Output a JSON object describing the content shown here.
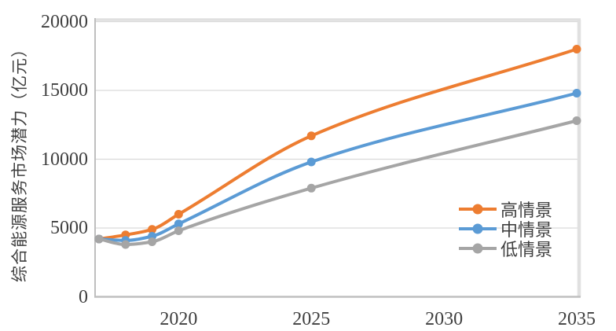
{
  "chart": {
    "y_axis_title": "综合能源服务市场潜力（亿元）",
    "y_ticks": [
      {
        "label": "0",
        "value": 0
      },
      {
        "label": "5000",
        "value": 5000
      },
      {
        "label": "10000",
        "value": 10000
      },
      {
        "label": "15000",
        "value": 15000
      },
      {
        "label": "20000",
        "value": 20000
      }
    ],
    "x_ticks": [
      {
        "label": "2020",
        "value": 2020
      },
      {
        "label": "2025",
        "value": 2025
      },
      {
        "label": "2030",
        "value": 2030
      },
      {
        "label": "2035",
        "value": 2035
      }
    ]
  },
  "chart_data": {
    "type": "line",
    "x": [
      2017,
      2018,
      2019,
      2020,
      2025,
      2035
    ],
    "series": [
      {
        "name": "高情景",
        "color": "#ED7D31",
        "values": [
          4200,
          4500,
          4900,
          6000,
          11700,
          18000
        ]
      },
      {
        "name": "中情景",
        "color": "#5B9BD5",
        "values": [
          4200,
          4100,
          4400,
          5300,
          9800,
          14800
        ]
      },
      {
        "name": "低情景",
        "color": "#A5A5A5",
        "values": [
          4200,
          3800,
          4000,
          4800,
          7900,
          12800
        ]
      }
    ],
    "title": "",
    "xlabel": "",
    "ylabel": "综合能源服务市场潜力（亿元）",
    "ylim": [
      0,
      20000
    ],
    "xlim": [
      2017,
      2035
    ],
    "grid": "horizontal",
    "smooth": true,
    "legend_position": "inside-right",
    "marker": "circle"
  },
  "colors": {
    "background": "#FFFFFF",
    "grid": "#D9D9D9",
    "plot_border": "#E0E0E0",
    "axis_line": "#BFBFBF",
    "text": "#3F3F3F"
  }
}
